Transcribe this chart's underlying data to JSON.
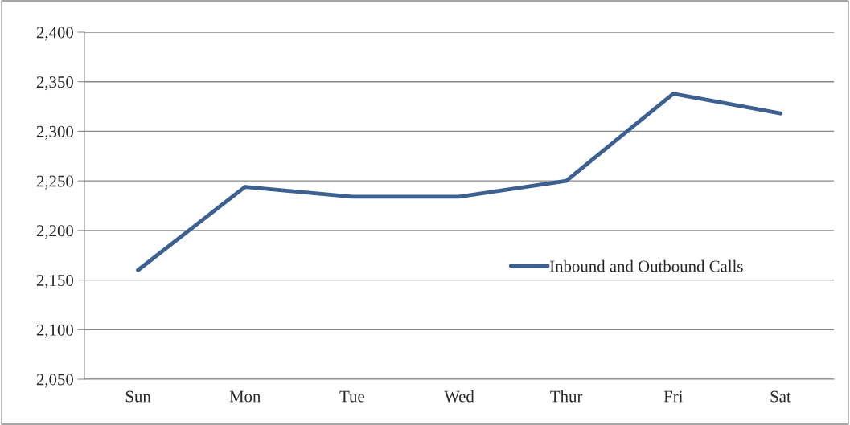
{
  "chart_data": {
    "type": "line",
    "categories": [
      "Sun",
      "Mon",
      "Tue",
      "Wed",
      "Thur",
      "Fri",
      "Sat"
    ],
    "series": [
      {
        "name": "Inbound and Outbound Calls",
        "color": "#3c6190",
        "values": [
          2160,
          2244,
          2234,
          2234,
          2250,
          2338,
          2318
        ]
      }
    ],
    "ylim": [
      2050,
      2400
    ],
    "yticks": [
      {
        "value": 2050,
        "label": "2,050"
      },
      {
        "value": 2100,
        "label": "2,100"
      },
      {
        "value": 2150,
        "label": "2,150"
      },
      {
        "value": 2200,
        "label": "2,200"
      },
      {
        "value": 2250,
        "label": "2,250"
      },
      {
        "value": 2300,
        "label": "2,300"
      },
      {
        "value": 2350,
        "label": "2,350"
      },
      {
        "value": 2400,
        "label": "2,400"
      }
    ],
    "grid": "y",
    "legend": "right",
    "marker": "none",
    "line_style": "solid"
  }
}
